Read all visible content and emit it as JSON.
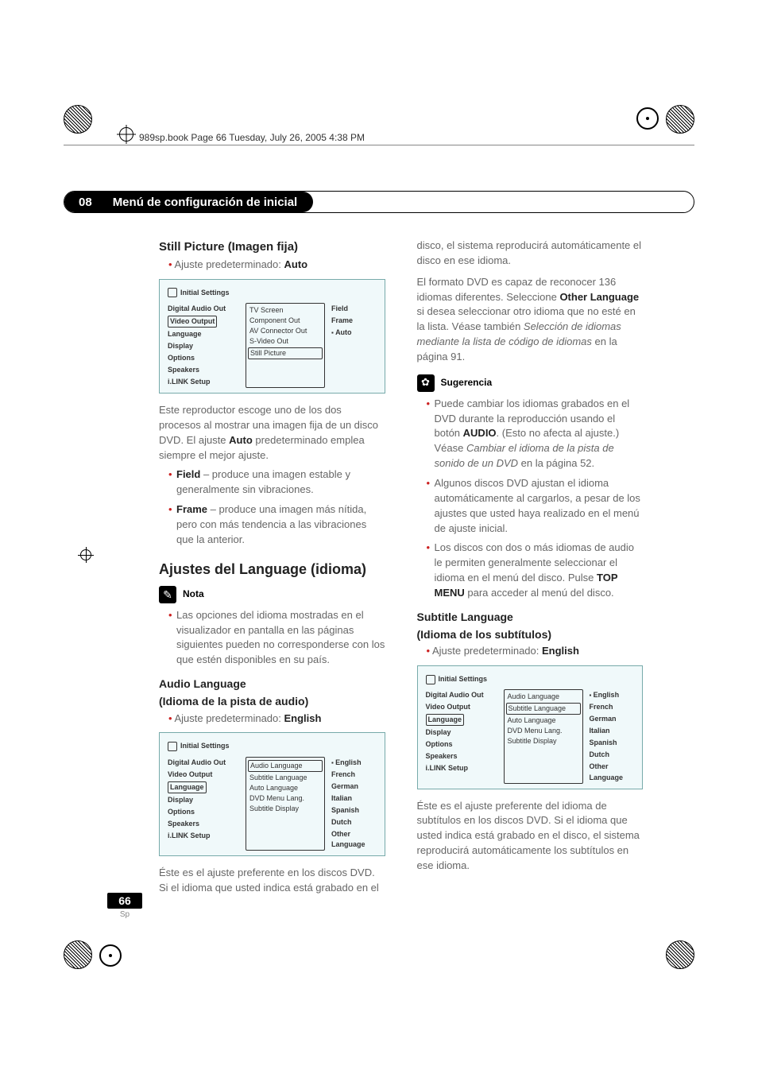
{
  "book_line": "989sp.book  Page 66  Tuesday, July 26, 2005  4:38 PM",
  "chapter": {
    "num": "08",
    "title": "Menú de configuración de inicial"
  },
  "still": {
    "h": "Still Picture (Imagen fija)",
    "pre": "Ajuste predeterminado: ",
    "pre_val": "Auto",
    "body": "Este reproductor escoge uno de los dos procesos al mostrar una imagen fija de un disco DVD. El ajuste ",
    "body_b": "Auto",
    "body2": " predeterminado emplea siempre el mejor ajuste.",
    "li1_b": "Field",
    "li1": " – produce una imagen estable y generalmente sin vibraciones.",
    "li2_b": "Frame",
    "li2": " – produce una imagen más nítida, pero con más tendencia a las vibraciones que la anterior."
  },
  "lang": {
    "h": "Ajustes del Language (idioma)",
    "note_label": "Nota",
    "note_li": "Las opciones del idioma mostradas en el visualizador en pantalla en las páginas siguientes pueden no corresponderse con los que estén disponibles en su país."
  },
  "audio": {
    "h1": "Audio Language",
    "h2": "(Idioma de la pista de audio)",
    "pre": "Ajuste predeterminado: ",
    "pre_val": "English",
    "p1": "Éste es el ajuste preferente en los discos DVD. Si el idioma que usted indica está grabado en el disco, el sistema reproducirá automáticamente el disco en ese idioma.",
    "p2a": "El formato DVD es capaz de reconocer 136 idiomas diferentes. Seleccione ",
    "p2b": "Other Language",
    "p2c": " si desea seleccionar otro idioma que no esté en la lista. Véase también ",
    "p2i": "Selección de idiomas mediante la lista de código de idiomas",
    "p2d": " en la página 91."
  },
  "sug": {
    "label": "Sugerencia",
    "li1a": "Puede cambiar los idiomas grabados en el DVD durante la reproducción usando el botón ",
    "li1b": "AUDIO",
    "li1c": ". (Esto no afecta al ajuste.) Véase ",
    "li1i": "Cambiar el idioma de la pista de sonido de un DVD",
    "li1d": " en la página 52.",
    "li2": "Algunos discos DVD ajustan el idioma automáticamente al cargarlos, a pesar de los ajustes que usted haya realizado en el menú de ajuste inicial.",
    "li3a": "Los discos con dos o más idiomas de audio le permiten generalmente seleccionar el idioma en el menú del disco. Pulse ",
    "li3b": "TOP MENU",
    "li3c": " para acceder al menú del disco."
  },
  "subt": {
    "h1": "Subtitle Language",
    "h2": "(Idioma de los subtítulos)",
    "pre": "Ajuste predeterminado: ",
    "pre_val": "English",
    "p": "Éste es el ajuste preferente del idioma de subtítulos en los discos DVD. Si el idioma que usted indica está grabado en el disco, el sistema reproducirá automáticamente los subtítulos en ese idioma."
  },
  "osd_left": [
    "Digital Audio Out",
    "Video Output",
    "Language",
    "Display",
    "Options",
    "Speakers",
    "i.LINK Setup"
  ],
  "osd1": {
    "title": "Initial Settings",
    "mid": [
      "TV Screen",
      "Component Out",
      "AV Connector Out",
      "S-Video Out",
      "Still Picture"
    ],
    "mid_sel_idx": 4,
    "right": [
      "Field",
      "Frame",
      "Auto"
    ],
    "right_sel_idx": 2,
    "left_sel_idx": 1
  },
  "osd2": {
    "title": "Initial Settings",
    "mid": [
      "Audio Language",
      "Subtitle Language",
      "Auto Language",
      "DVD Menu Lang.",
      "Subtitle Display"
    ],
    "mid_sel_idx": 0,
    "right": [
      "English",
      "French",
      "German",
      "Italian",
      "Spanish",
      "Dutch",
      "Other Language"
    ],
    "right_sel_idx": 0,
    "left_sel_idx": 2
  },
  "osd3": {
    "title": "Initial Settings",
    "mid": [
      "Audio Language",
      "Subtitle Language",
      "Auto Language",
      "DVD Menu Lang.",
      "Subtitle Display"
    ],
    "mid_sel_idx": 1,
    "right": [
      "English",
      "French",
      "German",
      "Italian",
      "Spanish",
      "Dutch",
      "Other Language"
    ],
    "right_sel_idx": 0,
    "left_sel_idx": 2
  },
  "page": {
    "num": "66",
    "lang": "Sp"
  }
}
